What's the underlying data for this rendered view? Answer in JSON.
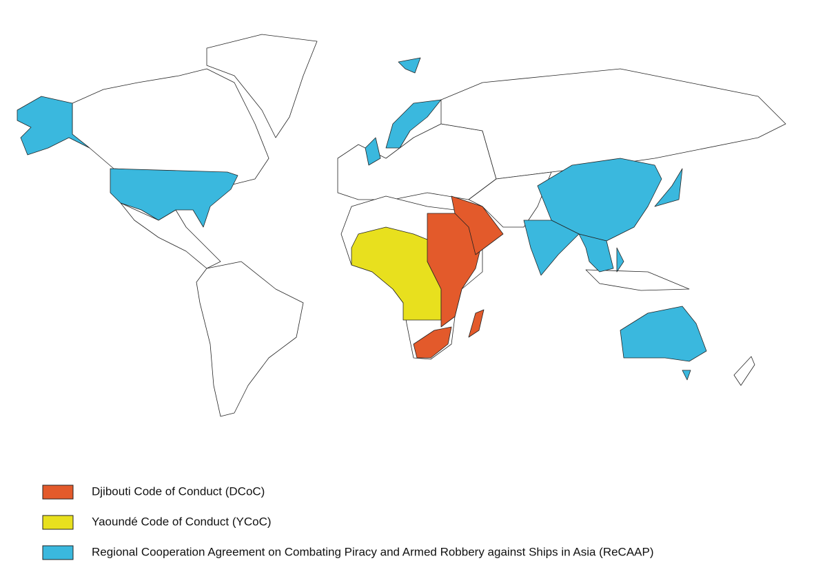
{
  "legend": {
    "items": [
      {
        "label": "Djibouti Code of Conduct (DCoC)",
        "color": "#e35a2b"
      },
      {
        "label": "Yaoundé Code of Conduct (YCoC)",
        "color": "#e8e01e"
      },
      {
        "label": "Regional Cooperation Agreement on Combating Piracy and Armed Robbery against Ships in Asia (ReCAAP)",
        "color": "#3ab8de"
      }
    ]
  }
}
